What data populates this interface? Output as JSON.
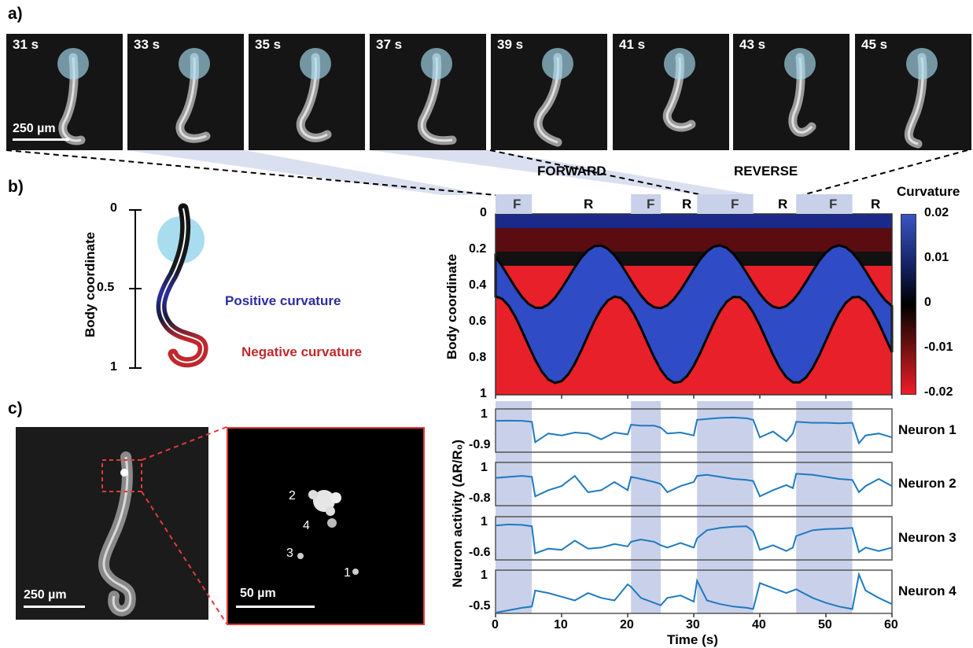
{
  "panel_a": {
    "label": "a)",
    "frames": [
      "31 s",
      "33 s",
      "35 s",
      "37 s",
      "39 s",
      "41 s",
      "43 s",
      "45 s"
    ],
    "scale_bar": "250 µm",
    "forward_label": "FORWARD",
    "reverse_label": "REVERSE"
  },
  "panel_b": {
    "label": "b)",
    "schematic_axis_title": "Body coordinate",
    "schematic_ticks": [
      "0",
      "0.5",
      "1"
    ],
    "positive_label": "Positive curvature",
    "negative_label": "Negative curvature",
    "colors": {
      "positive": "#2b2f9e",
      "negative": "#c0282d",
      "highlight": "#c9d0ea",
      "circle": "#a8dcef"
    }
  },
  "panel_c": {
    "label": "c)",
    "scale_left": "250 µm",
    "scale_right": "50 µm",
    "neuron_labels": [
      "2",
      "4",
      "3",
      "1"
    ]
  },
  "heatmap": {
    "ylabel": "Body coordinate",
    "yticks": [
      "0",
      "0.2",
      "0.4",
      "0.6",
      "0.8",
      "1"
    ],
    "colorbar_title": "Curvature",
    "colorbar_ticks": [
      "0.02",
      "0.01",
      "0",
      "-0.01",
      "-0.02"
    ],
    "state_labels": [
      "F",
      "R",
      "F",
      "R",
      "F",
      "R",
      "F",
      "R"
    ]
  },
  "traces": {
    "ylabel": "Neuron activity (ΔR/R₀)",
    "xlabel": "Time (s)",
    "xticks": [
      "0",
      "10",
      "20",
      "30",
      "40",
      "50",
      "60"
    ],
    "neurons": [
      {
        "name": "Neuron 1",
        "top": "1",
        "bottom": "-0.9"
      },
      {
        "name": "Neuron 2",
        "top": "1",
        "bottom": "-0.8"
      },
      {
        "name": "Neuron 3",
        "top": "1",
        "bottom": "-0.6"
      },
      {
        "name": "Neuron 4",
        "top": "1",
        "bottom": "-0.5"
      }
    ]
  },
  "chart_data": {
    "type": "line",
    "xlabel": "Time (s)",
    "xlim": [
      0,
      60
    ],
    "forward_intervals": [
      [
        0,
        5.5
      ],
      [
        20.5,
        25
      ],
      [
        30.5,
        39
      ],
      [
        45.5,
        54
      ]
    ],
    "series": [
      {
        "name": "Neuron 1",
        "ylim": [
          -0.9,
          1
        ],
        "x": [
          0,
          2,
          4,
          5.5,
          6,
          8,
          10,
          12,
          14,
          16,
          18,
          20,
          20.5,
          22,
          24,
          25,
          26,
          28,
          30,
          30.5,
          32,
          34,
          36,
          38,
          39,
          40,
          42,
          44,
          45,
          45.5,
          48,
          50,
          52,
          54,
          55,
          56,
          58,
          60
        ],
        "y": [
          0.55,
          0.56,
          0.55,
          0.5,
          -0.55,
          -0.1,
          -0.2,
          -0.05,
          -0.1,
          -0.4,
          -0.05,
          -0.15,
          0.35,
          0.3,
          0.3,
          0.2,
          -0.1,
          -0.05,
          -0.2,
          0.6,
          0.65,
          0.7,
          0.72,
          0.68,
          0.6,
          -0.3,
          0.0,
          -0.5,
          -0.1,
          0.5,
          0.45,
          0.45,
          0.42,
          0.45,
          -0.6,
          -0.2,
          -0.1,
          -0.3
        ]
      },
      {
        "name": "Neuron 2",
        "ylim": [
          -0.8,
          1
        ],
        "x": [
          0,
          2,
          4,
          5.5,
          6,
          8,
          10,
          12,
          14,
          16,
          18,
          20,
          20.5,
          22,
          24,
          25,
          26,
          28,
          30,
          30.5,
          32,
          34,
          36,
          38,
          39,
          40,
          42,
          44,
          45,
          45.5,
          48,
          50,
          52,
          54,
          55,
          56,
          58,
          60
        ],
        "y": [
          0.4,
          0.45,
          0.5,
          0.45,
          -0.5,
          -0.2,
          0.0,
          0.5,
          -0.3,
          -0.2,
          0.2,
          -0.2,
          0.45,
          0.35,
          0.2,
          0.1,
          -0.3,
          0.0,
          0.2,
          0.5,
          0.55,
          0.45,
          0.35,
          0.3,
          0.25,
          -0.5,
          -0.2,
          0.05,
          -0.1,
          0.6,
          0.55,
          0.45,
          0.35,
          0.3,
          -0.3,
          0.0,
          0.35,
          0.0
        ]
      },
      {
        "name": "Neuron 3",
        "ylim": [
          -0.6,
          1
        ],
        "x": [
          0,
          2,
          4,
          5.5,
          6,
          8,
          10,
          12,
          14,
          16,
          18,
          20,
          20.5,
          22,
          24,
          25,
          26,
          28,
          30,
          30.5,
          32,
          34,
          36,
          38,
          39,
          40,
          42,
          44,
          45,
          45.5,
          48,
          50,
          52,
          54,
          55,
          56,
          58,
          60
        ],
        "y": [
          0.75,
          0.8,
          0.78,
          0.72,
          -0.45,
          -0.25,
          -0.3,
          0.1,
          -0.25,
          -0.2,
          -0.05,
          -0.15,
          0.05,
          0.15,
          0.05,
          -0.1,
          -0.2,
          0.0,
          -0.2,
          0.2,
          0.55,
          0.65,
          0.7,
          0.72,
          0.5,
          -0.3,
          -0.1,
          -0.35,
          -0.2,
          0.3,
          0.55,
          0.6,
          0.62,
          0.65,
          -0.4,
          -0.2,
          -0.35,
          -0.2
        ]
      },
      {
        "name": "Neuron 4",
        "ylim": [
          -0.5,
          1
        ],
        "x": [
          0,
          2,
          4,
          5.5,
          6,
          8,
          10,
          12,
          14,
          16,
          18,
          20,
          20.5,
          22,
          24,
          25,
          26,
          28,
          30,
          30.5,
          32,
          34,
          36,
          38,
          39,
          40,
          42,
          44,
          45,
          45.5,
          48,
          50,
          52,
          54,
          55,
          56,
          58,
          60
        ],
        "y": [
          -0.6,
          -0.5,
          -0.4,
          -0.35,
          0.3,
          0.2,
          0.05,
          -0.1,
          0.2,
          0.0,
          -0.1,
          0.55,
          0.45,
          0.0,
          -0.2,
          -0.3,
          0.0,
          0.1,
          -0.15,
          0.7,
          -0.1,
          -0.25,
          -0.35,
          -0.4,
          -0.45,
          0.6,
          0.4,
          0.2,
          0.3,
          0.35,
          0.0,
          -0.2,
          -0.35,
          -0.45,
          0.95,
          0.3,
          0.0,
          -0.25
        ]
      }
    ]
  }
}
